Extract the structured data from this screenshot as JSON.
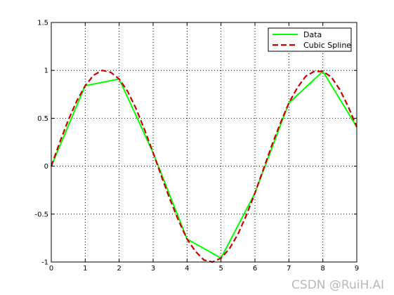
{
  "chart_data": {
    "type": "line",
    "title": "",
    "xlabel": "",
    "ylabel": "",
    "xlim": [
      0,
      9
    ],
    "ylim": [
      -1,
      1.5
    ],
    "xticks": [
      "0",
      "1",
      "2",
      "3",
      "4",
      "5",
      "6",
      "7",
      "8",
      "9"
    ],
    "yticks": [
      "1.5",
      "1",
      "0.5",
      "0",
      "-0.5",
      "-1"
    ],
    "grid": true,
    "legend_position": "top-right",
    "series": [
      {
        "name": "Data",
        "style": "solid",
        "color": "#00ff00",
        "x": [
          0,
          1,
          2,
          3,
          4,
          5,
          6,
          7,
          8,
          9
        ],
        "y": [
          0,
          0.84,
          0.91,
          0.14,
          -0.76,
          -0.96,
          -0.28,
          0.66,
          0.99,
          0.41
        ]
      },
      {
        "name": "Cubic Spline",
        "style": "dashed",
        "color": "#cc0000",
        "x": [
          0,
          0.25,
          0.5,
          0.75,
          1,
          1.25,
          1.5,
          1.75,
          2,
          2.25,
          2.5,
          2.75,
          3,
          3.25,
          3.5,
          3.75,
          4,
          4.25,
          4.5,
          4.75,
          5,
          5.25,
          5.5,
          5.75,
          6,
          6.25,
          6.5,
          6.75,
          7,
          7.25,
          7.5,
          7.75,
          8,
          8.25,
          8.5,
          8.75,
          9
        ],
        "y": [
          0,
          0.25,
          0.48,
          0.68,
          0.84,
          0.95,
          1.0,
          0.98,
          0.91,
          0.78,
          0.6,
          0.38,
          0.14,
          -0.11,
          -0.35,
          -0.57,
          -0.76,
          -0.89,
          -0.98,
          -1.0,
          -0.96,
          -0.86,
          -0.71,
          -0.51,
          -0.28,
          -0.03,
          0.22,
          0.45,
          0.66,
          0.82,
          0.94,
          0.99,
          0.99,
          0.93,
          0.8,
          0.62,
          0.41
        ]
      }
    ]
  },
  "watermark": "CSDN @RuiH.AI"
}
